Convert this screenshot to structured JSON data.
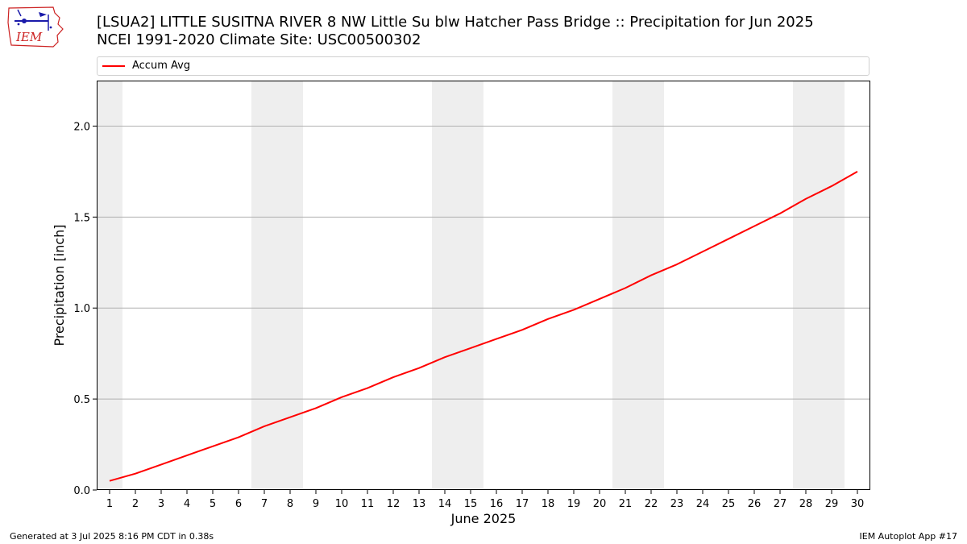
{
  "header": {
    "title_line1": "[LSUA2] LITTLE SUSITNA RIVER 8 NW Little Su blw Hatcher Pass Bridge :: Precipitation for Jun 2025",
    "title_line2": "NCEI 1991-2020 Climate Site: USC00500302",
    "logo_text": "IEM"
  },
  "footer": {
    "generated": "Generated at 3 Jul 2025 8:16 PM CDT in 0.38s",
    "app": "IEM Autoplot App #17"
  },
  "chart_data": {
    "type": "line",
    "title": "[LSUA2] LITTLE SUSITNA RIVER 8 NW Little Su blw Hatcher Pass Bridge :: Precipitation for Jun 2025",
    "subtitle": "NCEI 1991-2020 Climate Site: USC00500302",
    "xlabel": "June 2025",
    "ylabel": "Precipitation [inch]",
    "x": [
      1,
      2,
      3,
      4,
      5,
      6,
      7,
      8,
      9,
      10,
      11,
      12,
      13,
      14,
      15,
      16,
      17,
      18,
      19,
      20,
      21,
      22,
      23,
      24,
      25,
      26,
      27,
      28,
      29,
      30
    ],
    "xtick_labels": [
      "1",
      "2",
      "3",
      "4",
      "5",
      "6",
      "7",
      "8",
      "9",
      "10",
      "11",
      "12",
      "13",
      "14",
      "15",
      "16",
      "17",
      "18",
      "19",
      "20",
      "21",
      "22",
      "23",
      "24",
      "25",
      "26",
      "27",
      "28",
      "29",
      "30"
    ],
    "xlim": [
      0.5,
      30.5
    ],
    "ylim": [
      0,
      2.25
    ],
    "yticks": [
      0.0,
      0.5,
      1.0,
      1.5,
      2.0
    ],
    "ytick_labels": [
      "0.0",
      "0.5",
      "1.0",
      "1.5",
      "2.0"
    ],
    "grid": "horizontal",
    "legend_position": "top, above plot",
    "weekend_shading": [
      [
        0.5,
        1.5
      ],
      [
        6.5,
        8.5
      ],
      [
        13.5,
        15.5
      ],
      [
        20.5,
        22.5
      ],
      [
        27.5,
        29.5
      ]
    ],
    "series": [
      {
        "name": "Accum Avg",
        "color": "#ff0000",
        "values": [
          0.05,
          0.09,
          0.14,
          0.19,
          0.24,
          0.29,
          0.35,
          0.4,
          0.45,
          0.51,
          0.56,
          0.62,
          0.67,
          0.73,
          0.78,
          0.83,
          0.88,
          0.94,
          0.99,
          1.05,
          1.11,
          1.18,
          1.24,
          1.31,
          1.38,
          1.45,
          1.52,
          1.6,
          1.67,
          1.75
        ]
      }
    ]
  },
  "colors": {
    "series": "#ff0000",
    "shade": "#eeeeee",
    "grid": "#b0b0b0",
    "logo_red": "#cc2222",
    "logo_blue": "#1a1aaa"
  }
}
